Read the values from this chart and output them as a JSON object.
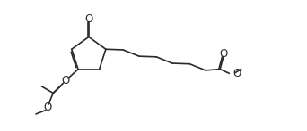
{
  "bg_color": "#ffffff",
  "line_color": "#2a2a2a",
  "lw": 1.2,
  "fig_width": 3.42,
  "fig_height": 1.47,
  "dpi": 100,
  "xlim": [
    0.0,
    11.0
  ],
  "ylim": [
    0.0,
    5.5
  ]
}
